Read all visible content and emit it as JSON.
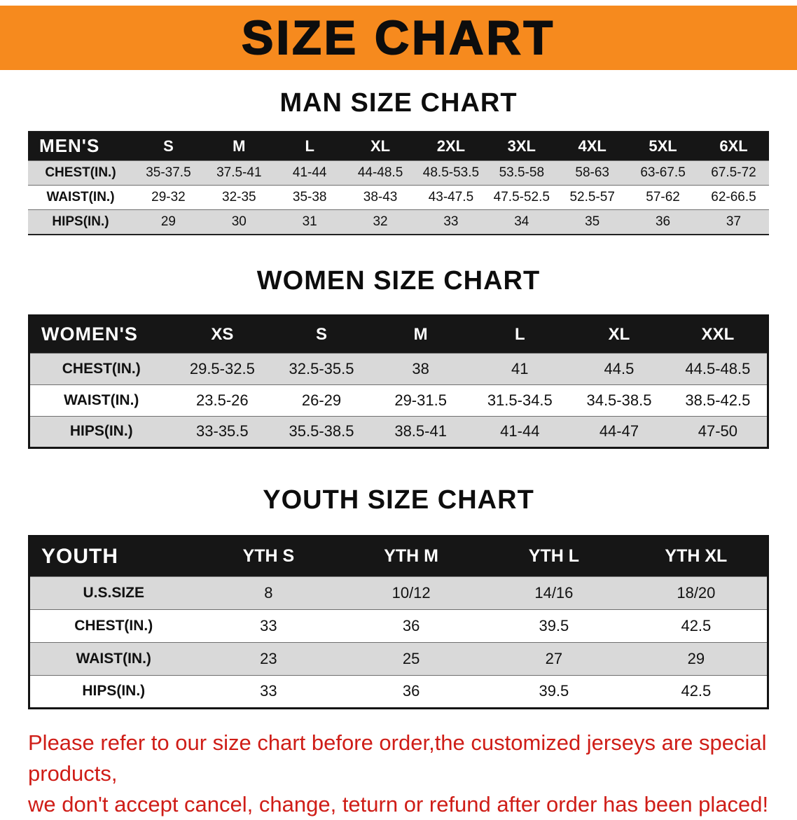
{
  "banner": {
    "title": "SIZE CHART"
  },
  "men": {
    "heading": "MAN SIZE CHART",
    "table": {
      "corner": "MEN'S",
      "columns": [
        "S",
        "M",
        "L",
        "XL",
        "2XL",
        "3XL",
        "4XL",
        "5XL",
        "6XL"
      ],
      "rows": [
        {
          "label": "CHEST(IN.)",
          "values": [
            "35-37.5",
            "37.5-41",
            "41-44",
            "44-48.5",
            "48.5-53.5",
            "53.5-58",
            "58-63",
            "63-67.5",
            "67.5-72"
          ]
        },
        {
          "label": "WAIST(IN.)",
          "values": [
            "29-32",
            "32-35",
            "35-38",
            "38-43",
            "43-47.5",
            "47.5-52.5",
            "52.5-57",
            "57-62",
            "62-66.5"
          ]
        },
        {
          "label": "HIPS(IN.)",
          "values": [
            "29",
            "30",
            "31",
            "32",
            "33",
            "34",
            "35",
            "36",
            "37"
          ]
        }
      ]
    }
  },
  "women": {
    "heading": "WOMEN SIZE CHART",
    "table": {
      "corner": "WOMEN'S",
      "columns": [
        "XS",
        "S",
        "M",
        "L",
        "XL",
        "XXL"
      ],
      "rows": [
        {
          "label": "CHEST(IN.)",
          "values": [
            "29.5-32.5",
            "32.5-35.5",
            "38",
            "41",
            "44.5",
            "44.5-48.5"
          ]
        },
        {
          "label": "WAIST(IN.)",
          "values": [
            "23.5-26",
            "26-29",
            "29-31.5",
            "31.5-34.5",
            "34.5-38.5",
            "38.5-42.5"
          ]
        },
        {
          "label": "HIPS(IN.)",
          "values": [
            "33-35.5",
            "35.5-38.5",
            "38.5-41",
            "41-44",
            "44-47",
            "47-50"
          ]
        }
      ]
    }
  },
  "youth": {
    "heading": "YOUTH SIZE CHART",
    "table": {
      "corner": "YOUTH",
      "columns": [
        "YTH S",
        "YTH M",
        "YTH L",
        "YTH XL"
      ],
      "rows": [
        {
          "label": "U.S.SIZE",
          "values": [
            "8",
            "10/12",
            "14/16",
            "18/20"
          ]
        },
        {
          "label": "CHEST(IN.)",
          "values": [
            "33",
            "36",
            "39.5",
            "42.5"
          ]
        },
        {
          "label": "WAIST(IN.)",
          "values": [
            "23",
            "25",
            "27",
            "29"
          ]
        },
        {
          "label": "HIPS(IN.)",
          "values": [
            "33",
            "36",
            "39.5",
            "42.5"
          ]
        }
      ]
    }
  },
  "footer": {
    "line1": "Please refer to our size chart before order,the customized jerseys are special products,",
    "line2": "we don't accept cancel, change, teturn or refund after order has been placed!"
  },
  "colors": {
    "banner_orange": "#f68a1e",
    "header_black": "#161616",
    "row_gray": "#d9d9d9",
    "footer_red": "#cf1d17"
  }
}
